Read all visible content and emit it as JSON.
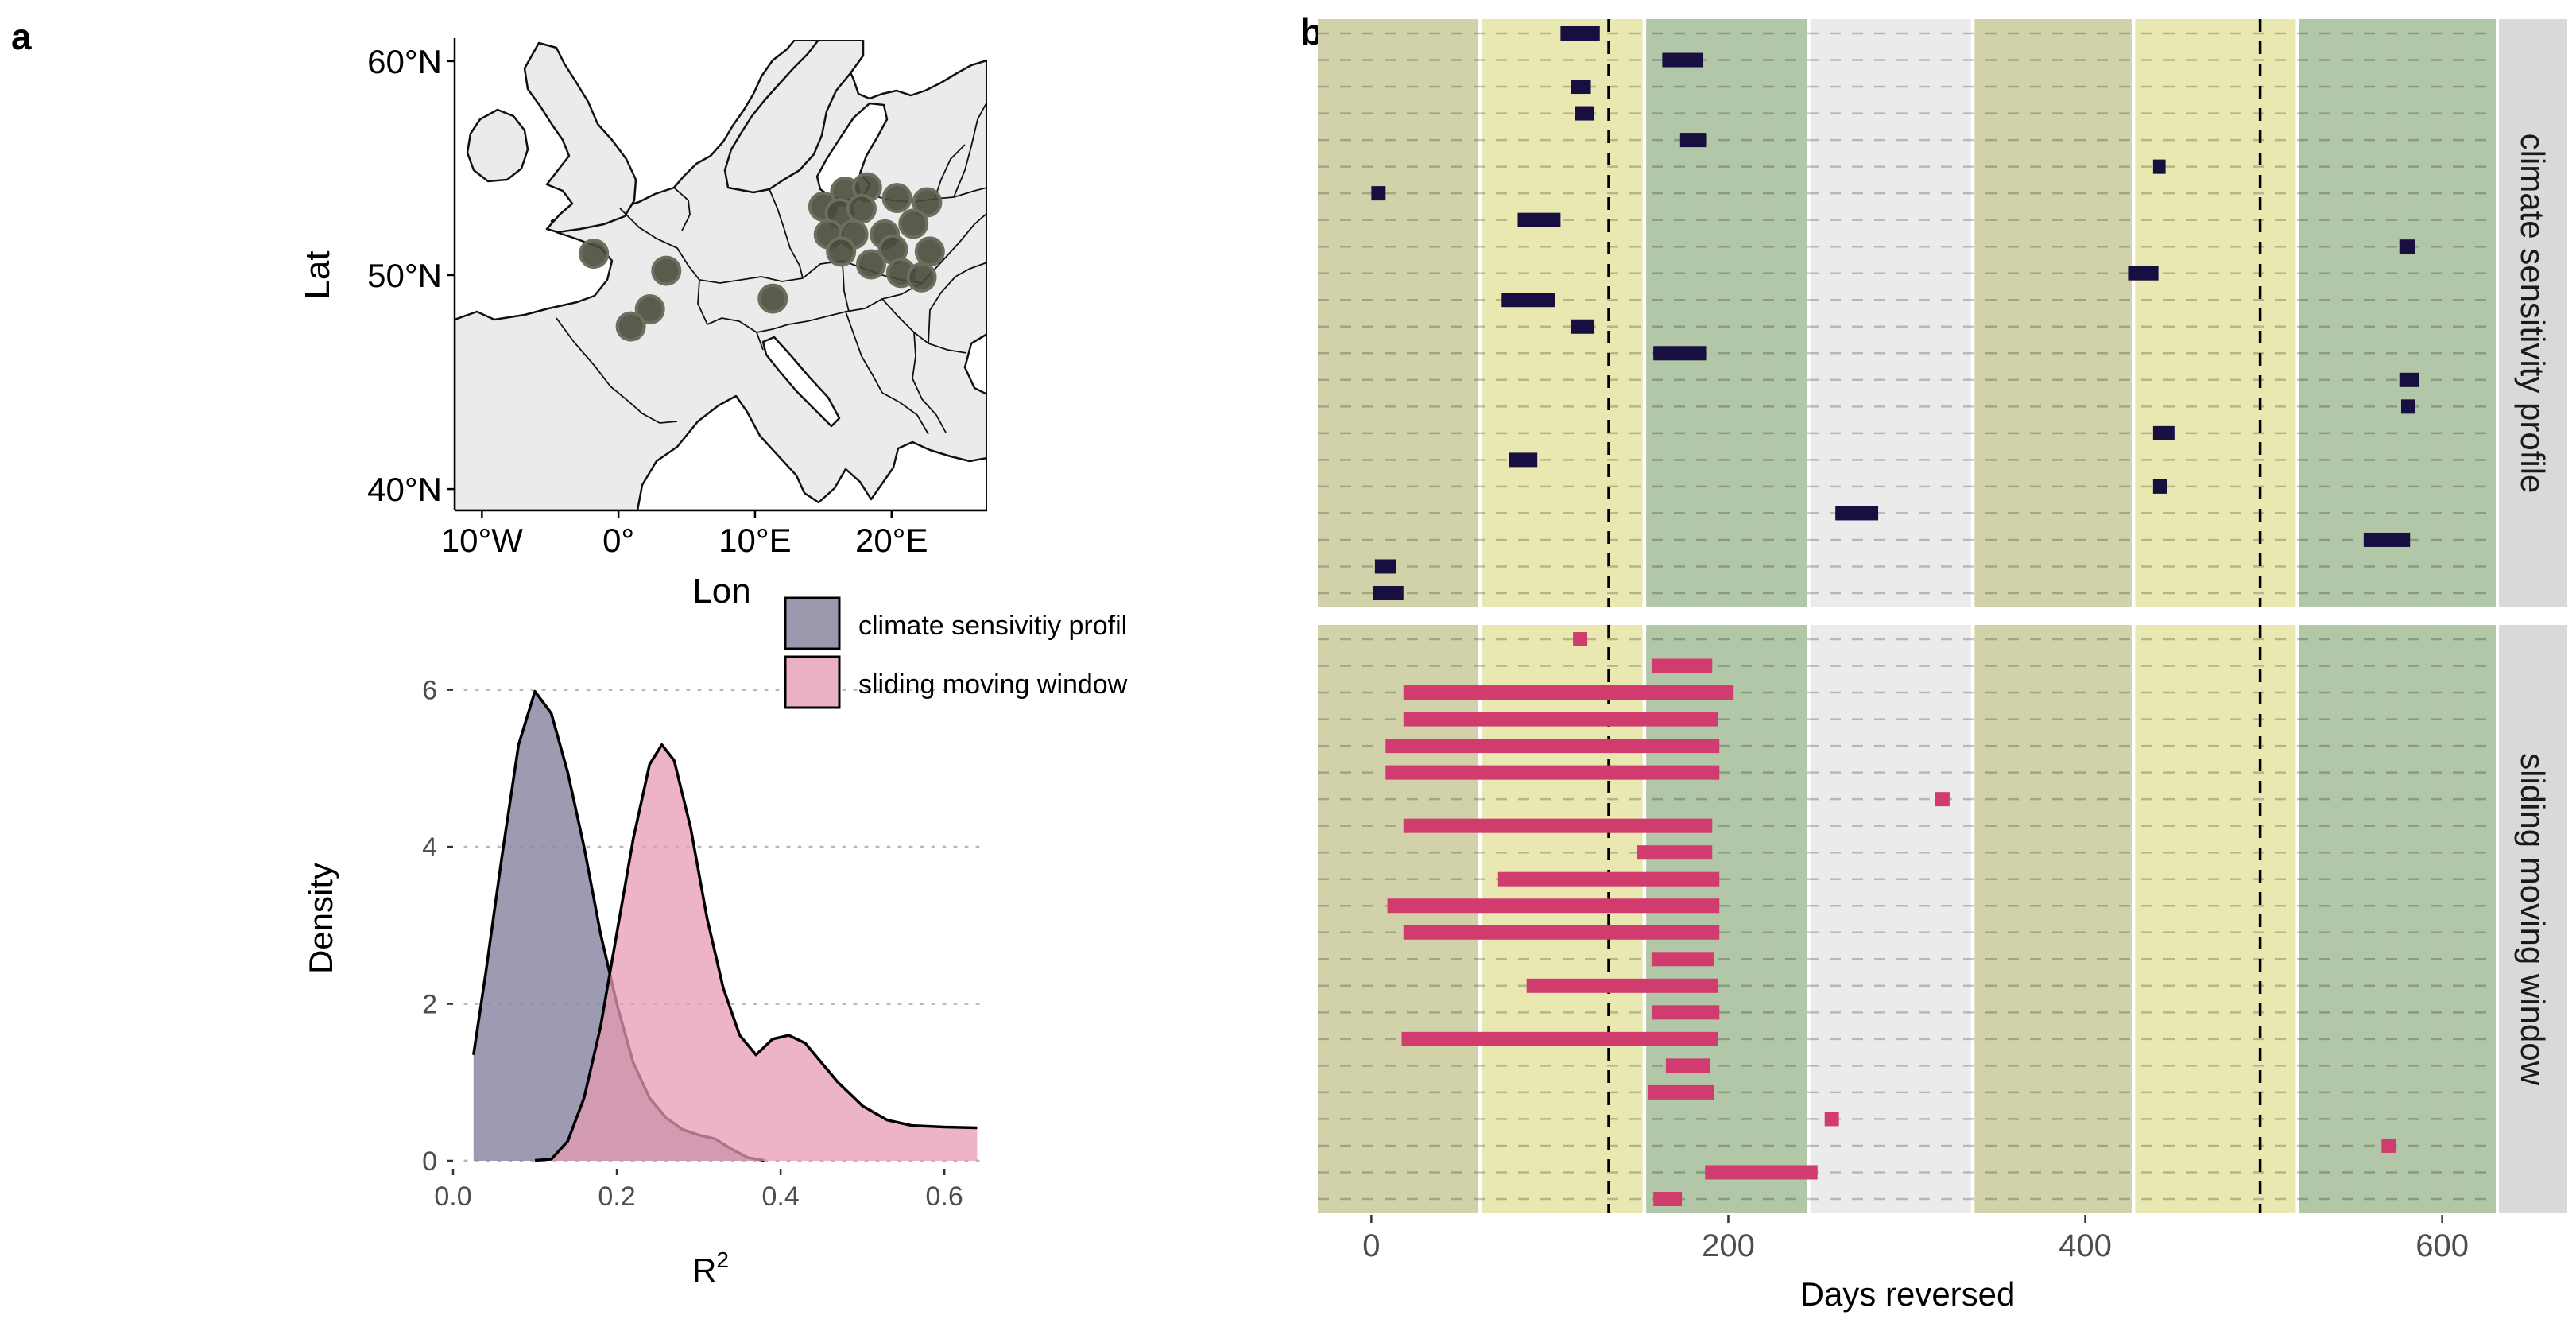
{
  "panel_labels": {
    "a": "a",
    "b": "b"
  },
  "chart_data": [
    {
      "id": "map",
      "type": "scatter",
      "description_role": "site map",
      "xlabel": "Lon",
      "ylabel": "Lat",
      "xlim": [
        -12,
        27
      ],
      "ylim": [
        39,
        61
      ],
      "x_ticks": [
        {
          "value": -10,
          "label": "10°W"
        },
        {
          "value": 0,
          "label": "0°"
        },
        {
          "value": 10,
          "label": "10°E"
        },
        {
          "value": 20,
          "label": "20°E"
        }
      ],
      "y_ticks": [
        {
          "value": 40,
          "label": "40°N"
        },
        {
          "value": 50,
          "label": "50°N"
        },
        {
          "value": 60,
          "label": "60°N"
        }
      ],
      "colors": {
        "land": "#ebebeb",
        "sea": "#ffffff",
        "border": "#111111",
        "site": "#4a4a3c",
        "site_outline": "#6e6e5e"
      },
      "sites": [
        {
          "lon": -1.8,
          "lat": 51.0
        },
        {
          "lon": 3.5,
          "lat": 50.2
        },
        {
          "lon": 2.3,
          "lat": 48.4
        },
        {
          "lon": 0.9,
          "lat": 47.6
        },
        {
          "lon": 11.3,
          "lat": 48.9
        },
        {
          "lon": 15.0,
          "lat": 53.2
        },
        {
          "lon": 16.6,
          "lat": 53.9
        },
        {
          "lon": 18.2,
          "lat": 54.1
        },
        {
          "lon": 16.2,
          "lat": 52.9
        },
        {
          "lon": 17.8,
          "lat": 53.1
        },
        {
          "lon": 20.4,
          "lat": 53.6
        },
        {
          "lon": 22.6,
          "lat": 53.4
        },
        {
          "lon": 15.4,
          "lat": 51.9
        },
        {
          "lon": 17.2,
          "lat": 51.9
        },
        {
          "lon": 19.5,
          "lat": 51.9
        },
        {
          "lon": 21.6,
          "lat": 52.4
        },
        {
          "lon": 16.3,
          "lat": 51.1
        },
        {
          "lon": 20.1,
          "lat": 51.2
        },
        {
          "lon": 22.8,
          "lat": 51.1
        },
        {
          "lon": 18.5,
          "lat": 50.5
        },
        {
          "lon": 20.7,
          "lat": 50.1
        },
        {
          "lon": 22.2,
          "lat": 49.9
        }
      ]
    },
    {
      "id": "density",
      "type": "area",
      "xlabel": "R",
      "xlabel_sup": "2",
      "ylabel": "Density",
      "xlim": [
        0.0,
        0.66
      ],
      "ylim": [
        0,
        6.3
      ],
      "x_ticks": [
        0.0,
        0.2,
        0.4,
        0.6
      ],
      "x_tick_labels": [
        "0.0",
        "0.2",
        "0.4",
        "0.6"
      ],
      "y_ticks": [
        0,
        2,
        4,
        6
      ],
      "y_tick_labels": [
        "0",
        "2",
        "4",
        "6"
      ],
      "grid": "horizontal dotted",
      "legend_position": "top-right",
      "series": [
        {
          "name": "climate sensivitiy profil",
          "color": "#8c89a3",
          "points": [
            [
              0.025,
              1.35
            ],
            [
              0.04,
              2.4
            ],
            [
              0.06,
              3.9
            ],
            [
              0.08,
              5.3
            ],
            [
              0.1,
              5.98
            ],
            [
              0.12,
              5.7
            ],
            [
              0.14,
              4.95
            ],
            [
              0.16,
              4.0
            ],
            [
              0.18,
              2.9
            ],
            [
              0.2,
              2.0
            ],
            [
              0.22,
              1.25
            ],
            [
              0.24,
              0.8
            ],
            [
              0.26,
              0.55
            ],
            [
              0.28,
              0.4
            ],
            [
              0.3,
              0.33
            ],
            [
              0.32,
              0.28
            ],
            [
              0.34,
              0.15
            ],
            [
              0.36,
              0.04
            ],
            [
              0.38,
              0.005
            ]
          ]
        },
        {
          "name": "sliding moving window",
          "color": "#e59bb3",
          "points": [
            [
              0.1,
              0.005
            ],
            [
              0.12,
              0.02
            ],
            [
              0.14,
              0.25
            ],
            [
              0.16,
              0.8
            ],
            [
              0.18,
              1.7
            ],
            [
              0.2,
              2.9
            ],
            [
              0.22,
              4.1
            ],
            [
              0.24,
              5.05
            ],
            [
              0.255,
              5.3
            ],
            [
              0.27,
              5.1
            ],
            [
              0.29,
              4.25
            ],
            [
              0.31,
              3.1
            ],
            [
              0.33,
              2.2
            ],
            [
              0.35,
              1.6
            ],
            [
              0.37,
              1.35
            ],
            [
              0.39,
              1.55
            ],
            [
              0.41,
              1.6
            ],
            [
              0.43,
              1.5
            ],
            [
              0.45,
              1.25
            ],
            [
              0.47,
              1.0
            ],
            [
              0.5,
              0.7
            ],
            [
              0.53,
              0.52
            ],
            [
              0.56,
              0.45
            ],
            [
              0.6,
              0.43
            ],
            [
              0.64,
              0.42
            ]
          ]
        }
      ]
    },
    {
      "id": "windows",
      "type": "bar",
      "xlabel": "Days reversed",
      "xlim": [
        -30,
        630
      ],
      "x_ticks": [
        0,
        200,
        400,
        600
      ],
      "x_tick_labels": [
        "0",
        "200",
        "400",
        "600"
      ],
      "rows_per_facet": 22,
      "season_bands": [
        {
          "from": -30,
          "to": 60,
          "color": "#d2d2aa"
        },
        {
          "from": 62,
          "to": 152,
          "color": "#e8e8b0"
        },
        {
          "from": 154,
          "to": 244,
          "color": "#b2c6a8"
        },
        {
          "from": 246,
          "to": 336,
          "color": "#ebebeb"
        },
        {
          "from": 338,
          "to": 426,
          "color": "#d2d2aa"
        },
        {
          "from": 428,
          "to": 518,
          "color": "#e8e8b0"
        },
        {
          "from": 520,
          "to": 630,
          "color": "#b2c6a8"
        }
      ],
      "reference_lines": [
        133,
        498
      ],
      "facets": [
        {
          "name": "climate sensitivity profile",
          "color": "#160f40",
          "bars": [
            {
              "row": 1,
              "start": 106,
              "end": 128
            },
            {
              "row": 2,
              "start": 163,
              "end": 186
            },
            {
              "row": 3,
              "start": 112,
              "end": 123
            },
            {
              "row": 4,
              "start": 114,
              "end": 125
            },
            {
              "row": 5,
              "start": 173,
              "end": 188
            },
            {
              "row": 6,
              "start": 438,
              "end": 445
            },
            {
              "row": 7,
              "start": 0,
              "end": 8
            },
            {
              "row": 8,
              "start": 82,
              "end": 106
            },
            {
              "row": 9,
              "start": 576,
              "end": 585
            },
            {
              "row": 10,
              "start": 424,
              "end": 441
            },
            {
              "row": 11,
              "start": 73,
              "end": 103
            },
            {
              "row": 12,
              "start": 112,
              "end": 125
            },
            {
              "row": 13,
              "start": 158,
              "end": 188
            },
            {
              "row": 14,
              "start": 576,
              "end": 587
            },
            {
              "row": 15,
              "start": 577,
              "end": 585
            },
            {
              "row": 16,
              "start": 438,
              "end": 450
            },
            {
              "row": 17,
              "start": 77,
              "end": 93
            },
            {
              "row": 18,
              "start": 438,
              "end": 446
            },
            {
              "row": 19,
              "start": 260,
              "end": 284
            },
            {
              "row": 20,
              "start": 556,
              "end": 582
            },
            {
              "row": 21,
              "start": 2,
              "end": 14
            },
            {
              "row": 22,
              "start": 1,
              "end": 18
            }
          ]
        },
        {
          "name": "sliding moving window",
          "color": "#d03c6e",
          "bars": [
            {
              "row": 1,
              "start": 113,
              "end": 121
            },
            {
              "row": 2,
              "start": 157,
              "end": 191
            },
            {
              "row": 3,
              "start": 18,
              "end": 203
            },
            {
              "row": 4,
              "start": 18,
              "end": 194
            },
            {
              "row": 5,
              "start": 8,
              "end": 195
            },
            {
              "row": 6,
              "start": 8,
              "end": 195
            },
            {
              "row": 7,
              "start": 316,
              "end": 324
            },
            {
              "row": 8,
              "start": 18,
              "end": 191
            },
            {
              "row": 9,
              "start": 149,
              "end": 191
            },
            {
              "row": 10,
              "start": 71,
              "end": 195
            },
            {
              "row": 11,
              "start": 9,
              "end": 195
            },
            {
              "row": 12,
              "start": 18,
              "end": 195
            },
            {
              "row": 13,
              "start": 157,
              "end": 192
            },
            {
              "row": 14,
              "start": 87,
              "end": 194
            },
            {
              "row": 15,
              "start": 157,
              "end": 195
            },
            {
              "row": 16,
              "start": 17,
              "end": 194
            },
            {
              "row": 17,
              "start": 165,
              "end": 190
            },
            {
              "row": 18,
              "start": 155,
              "end": 192
            },
            {
              "row": 19,
              "start": 254,
              "end": 262
            },
            {
              "row": 20,
              "start": 566,
              "end": 574
            },
            {
              "row": 21,
              "start": 187,
              "end": 250
            },
            {
              "row": 22,
              "start": 158,
              "end": 174
            }
          ]
        }
      ]
    }
  ]
}
